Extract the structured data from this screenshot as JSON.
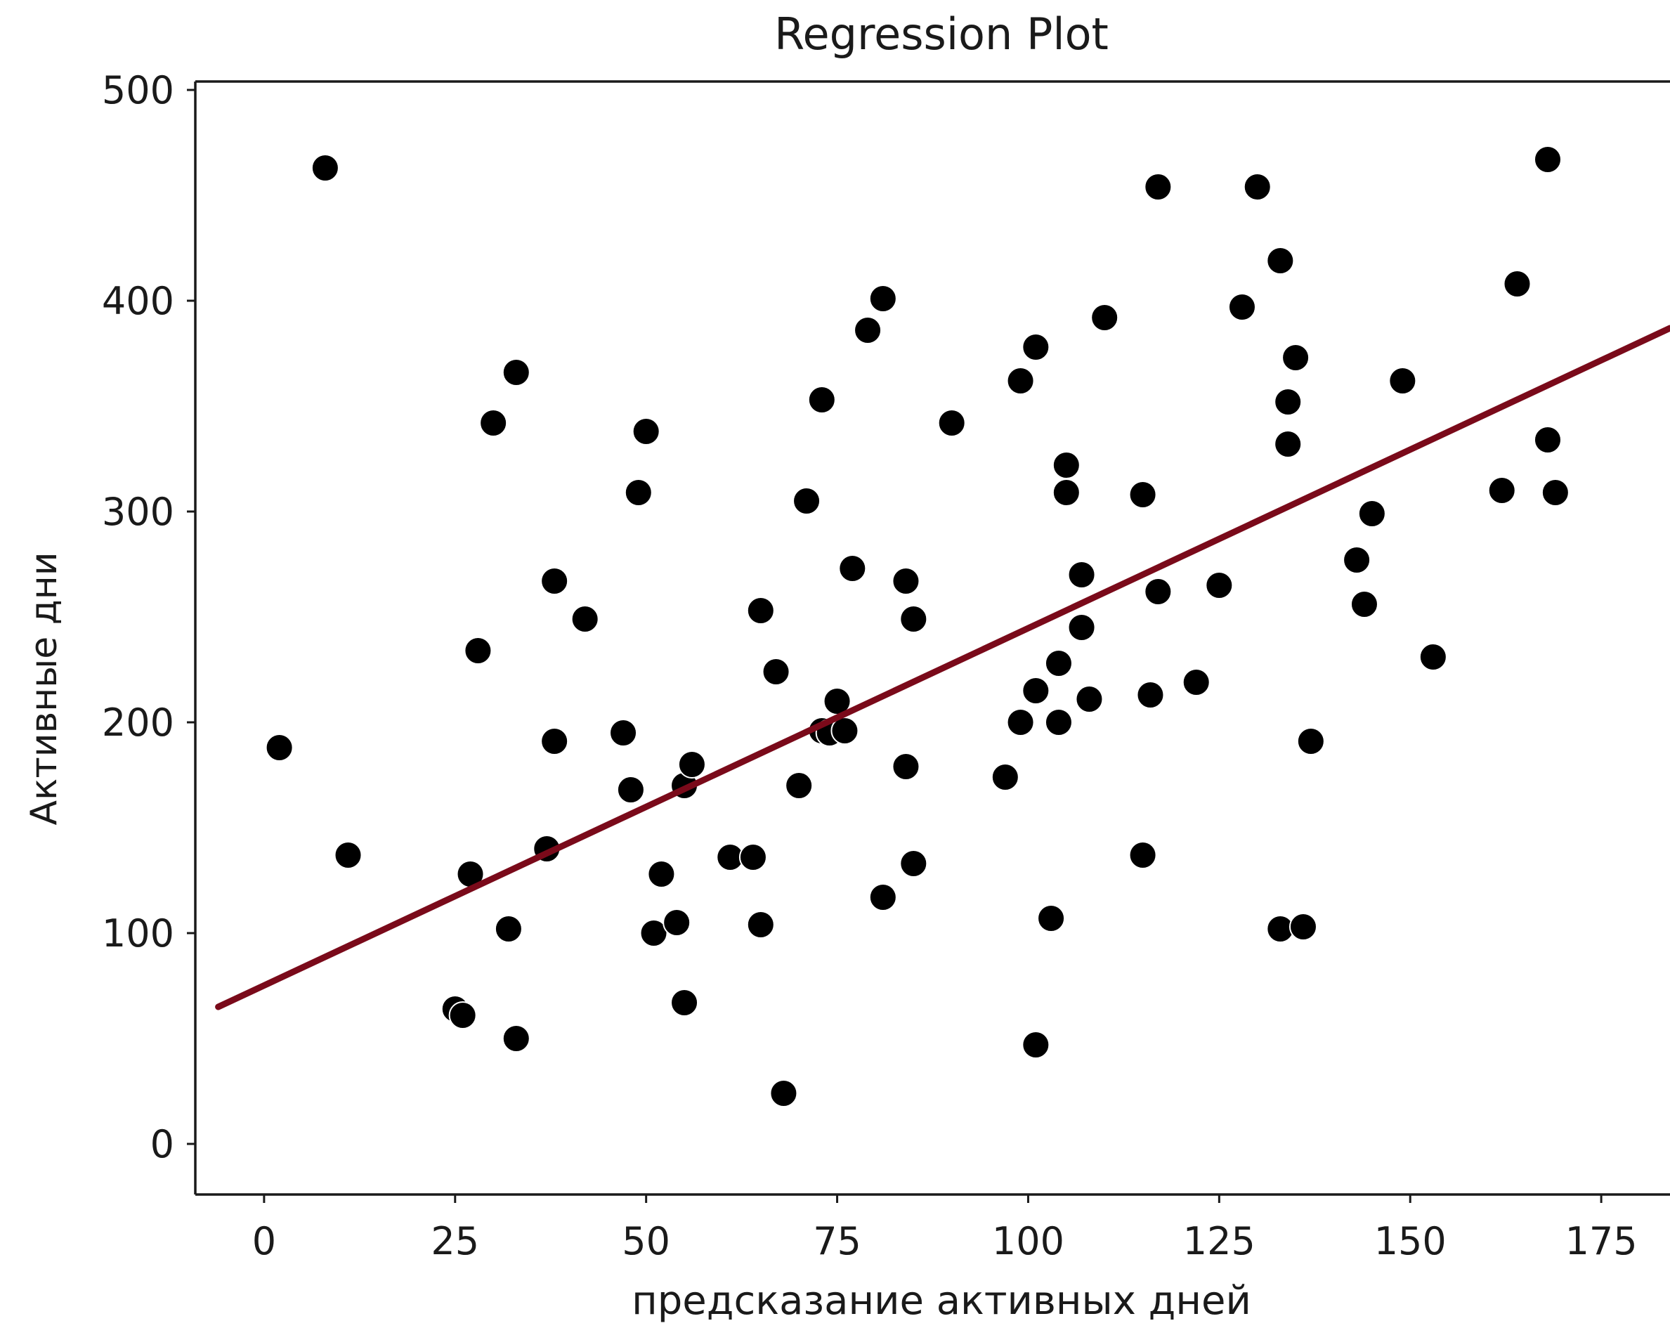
{
  "chart_data": {
    "type": "scatter",
    "title": "Regression Plot",
    "xlabel": "предсказание активных дней",
    "ylabel": "Активные дни",
    "xlim": [
      -9,
      184
    ],
    "ylim": [
      -24,
      504
    ],
    "xticks": [
      0,
      25,
      50,
      75,
      100,
      125,
      150,
      175
    ],
    "yticks": [
      0,
      100,
      200,
      300,
      400,
      500
    ],
    "grid": false,
    "point_color": "#000000",
    "line_color": "#7a0a1a",
    "points": [
      {
        "x": 8,
        "y": 463
      },
      {
        "x": 2,
        "y": 188
      },
      {
        "x": 11,
        "y": 137
      },
      {
        "x": 25,
        "y": 64
      },
      {
        "x": 26,
        "y": 61
      },
      {
        "x": 27,
        "y": 128
      },
      {
        "x": 28,
        "y": 234
      },
      {
        "x": 30,
        "y": 342
      },
      {
        "x": 32,
        "y": 102
      },
      {
        "x": 33,
        "y": 50
      },
      {
        "x": 33,
        "y": 366
      },
      {
        "x": 37,
        "y": 140
      },
      {
        "x": 38,
        "y": 267
      },
      {
        "x": 38,
        "y": 191
      },
      {
        "x": 42,
        "y": 249
      },
      {
        "x": 47,
        "y": 195
      },
      {
        "x": 48,
        "y": 168
      },
      {
        "x": 49,
        "y": 309
      },
      {
        "x": 50,
        "y": 338
      },
      {
        "x": 51,
        "y": 100
      },
      {
        "x": 52,
        "y": 128
      },
      {
        "x": 54,
        "y": 105
      },
      {
        "x": 55,
        "y": 67
      },
      {
        "x": 55,
        "y": 170
      },
      {
        "x": 56,
        "y": 180
      },
      {
        "x": 61,
        "y": 136
      },
      {
        "x": 64,
        "y": 136
      },
      {
        "x": 65,
        "y": 253
      },
      {
        "x": 65,
        "y": 104
      },
      {
        "x": 67,
        "y": 224
      },
      {
        "x": 68,
        "y": 24
      },
      {
        "x": 70,
        "y": 170
      },
      {
        "x": 71,
        "y": 305
      },
      {
        "x": 73,
        "y": 353
      },
      {
        "x": 73,
        "y": 196
      },
      {
        "x": 74,
        "y": 195
      },
      {
        "x": 75,
        "y": 210
      },
      {
        "x": 76,
        "y": 196
      },
      {
        "x": 77,
        "y": 273
      },
      {
        "x": 79,
        "y": 386
      },
      {
        "x": 81,
        "y": 401
      },
      {
        "x": 81,
        "y": 117
      },
      {
        "x": 84,
        "y": 179
      },
      {
        "x": 84,
        "y": 267
      },
      {
        "x": 85,
        "y": 133
      },
      {
        "x": 85,
        "y": 249
      },
      {
        "x": 90,
        "y": 342
      },
      {
        "x": 97,
        "y": 174
      },
      {
        "x": 99,
        "y": 200
      },
      {
        "x": 99,
        "y": 362
      },
      {
        "x": 101,
        "y": 378
      },
      {
        "x": 101,
        "y": 47
      },
      {
        "x": 101,
        "y": 215
      },
      {
        "x": 103,
        "y": 107
      },
      {
        "x": 104,
        "y": 200
      },
      {
        "x": 104,
        "y": 228
      },
      {
        "x": 105,
        "y": 322
      },
      {
        "x": 105,
        "y": 309
      },
      {
        "x": 107,
        "y": 270
      },
      {
        "x": 107,
        "y": 245
      },
      {
        "x": 108,
        "y": 211
      },
      {
        "x": 110,
        "y": 392
      },
      {
        "x": 115,
        "y": 137
      },
      {
        "x": 115,
        "y": 308
      },
      {
        "x": 116,
        "y": 213
      },
      {
        "x": 117,
        "y": 262
      },
      {
        "x": 117,
        "y": 454
      },
      {
        "x": 122,
        "y": 219
      },
      {
        "x": 125,
        "y": 265
      },
      {
        "x": 128,
        "y": 397
      },
      {
        "x": 130,
        "y": 454
      },
      {
        "x": 133,
        "y": 102
      },
      {
        "x": 133,
        "y": 419
      },
      {
        "x": 134,
        "y": 332
      },
      {
        "x": 134,
        "y": 352
      },
      {
        "x": 135,
        "y": 373
      },
      {
        "x": 136,
        "y": 103
      },
      {
        "x": 137,
        "y": 191
      },
      {
        "x": 143,
        "y": 277
      },
      {
        "x": 144,
        "y": 256
      },
      {
        "x": 145,
        "y": 299
      },
      {
        "x": 149,
        "y": 362
      },
      {
        "x": 153,
        "y": 231
      },
      {
        "x": 162,
        "y": 310
      },
      {
        "x": 164,
        "y": 408
      },
      {
        "x": 168,
        "y": 467
      },
      {
        "x": 168,
        "y": 334
      },
      {
        "x": 169,
        "y": 309
      }
    ],
    "regression_line": {
      "x": [
        -6,
        184
      ],
      "y": [
        65,
        387
      ]
    }
  }
}
